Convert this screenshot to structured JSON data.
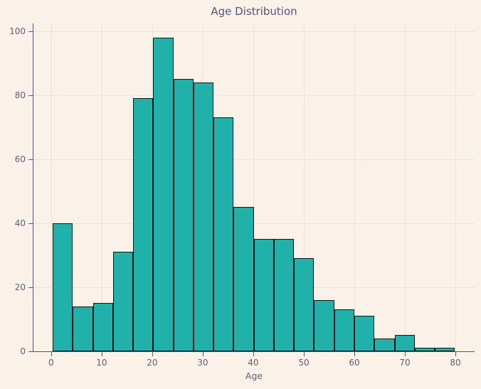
{
  "chart_data": {
    "type": "bar",
    "subtype": "histogram",
    "title": "Age Distribution",
    "xlabel": "Age",
    "ylabel": "",
    "bin_start": 0.3,
    "bin_width": 3.98,
    "categories": [
      "0-4",
      "4-8",
      "8-12",
      "12-16",
      "16-20",
      "20-24",
      "24-28",
      "28-32",
      "32-36",
      "36-40",
      "40-44",
      "44-48",
      "48-52",
      "52-56",
      "56-60",
      "60-64",
      "64-68",
      "68-72",
      "72-76",
      "76-80"
    ],
    "values": [
      40,
      14,
      15,
      31,
      79,
      98,
      85,
      84,
      73,
      45,
      35,
      35,
      29,
      16,
      13,
      11,
      4,
      5,
      1,
      1
    ],
    "x_ticks": [
      0,
      10,
      20,
      30,
      40,
      50,
      60,
      70,
      80
    ],
    "y_ticks": [
      0,
      20,
      40,
      60,
      80,
      100
    ],
    "xlim": [
      -3.5,
      83.8
    ],
    "ylim": [
      0,
      102.4
    ],
    "grid": true,
    "legend": false,
    "colors": {
      "background": "#faf2e8",
      "gridline": "#f0e2d3",
      "bar_fill": "#20b2aa",
      "bar_edge": "#141414",
      "axis": "#55556e",
      "tick_text": "#5d5d73",
      "title_text": "#54547a"
    }
  }
}
